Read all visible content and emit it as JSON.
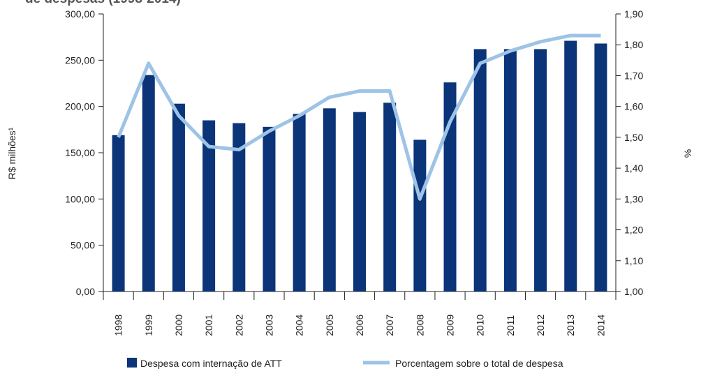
{
  "chart_data": {
    "type": "bar_line",
    "title": "de despesas (1998-2014)",
    "y_label": "R$ milhões¹",
    "y2_label": "%",
    "categories": [
      "1998",
      "1999",
      "2000",
      "2001",
      "2002",
      "2003",
      "2004",
      "2005",
      "2006",
      "2007",
      "2008",
      "2009",
      "2010",
      "2011",
      "2012",
      "2013",
      "2014"
    ],
    "series": [
      {
        "name": "Despesa com internação de ATT",
        "type": "bar",
        "color": "#0b3479",
        "values": [
          169,
          234,
          203,
          185,
          182,
          178,
          192,
          198,
          194,
          204,
          164,
          226,
          262,
          262,
          262,
          271,
          268
        ]
      },
      {
        "name": "Porcentagem sobre o total de despesa",
        "type": "line",
        "axis": "y2",
        "color": "#9dc3e6",
        "values": [
          1.5,
          1.74,
          1.57,
          1.47,
          1.46,
          1.52,
          1.57,
          1.63,
          1.65,
          1.65,
          1.3,
          1.55,
          1.74,
          1.78,
          1.81,
          1.83,
          1.83
        ]
      }
    ],
    "ylim": [
      0,
      300
    ],
    "yticks": [
      {
        "value": 0,
        "label": "0,00"
      },
      {
        "value": 50,
        "label": "50,00"
      },
      {
        "value": 100,
        "label": "100,00"
      },
      {
        "value": 150,
        "label": "150,00"
      },
      {
        "value": 200,
        "label": "200,00"
      },
      {
        "value": 250,
        "label": "250,00"
      },
      {
        "value": 300,
        "label": "300,00"
      }
    ],
    "y2lim": [
      1.0,
      1.9
    ],
    "y2ticks": [
      {
        "value": 1.0,
        "label": "1,00"
      },
      {
        "value": 1.1,
        "label": "1,10"
      },
      {
        "value": 1.2,
        "label": "1,20"
      },
      {
        "value": 1.3,
        "label": "1,30"
      },
      {
        "value": 1.4,
        "label": "1,40"
      },
      {
        "value": 1.5,
        "label": "1,50"
      },
      {
        "value": 1.6,
        "label": "1,60"
      },
      {
        "value": 1.7,
        "label": "1,70"
      },
      {
        "value": 1.8,
        "label": "1,80"
      },
      {
        "value": 1.9,
        "label": "1,90"
      }
    ],
    "legend": "bottom"
  }
}
